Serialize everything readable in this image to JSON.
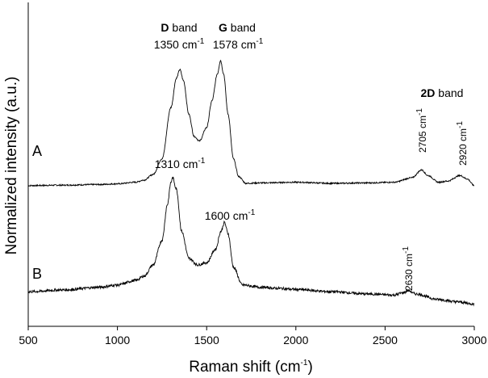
{
  "chart_data": {
    "type": "line",
    "xlabel": "Raman shift",
    "xlabel_unit_base": "cm",
    "xlabel_unit_exp": "-1",
    "ylabel": "Normalized intensity (a.u.)",
    "xlim": [
      500,
      3000
    ],
    "ylim": [
      0,
      1.45
    ],
    "xticks": [
      "500",
      "1000",
      "1500",
      "2000",
      "2500",
      "3000"
    ],
    "grid": false,
    "legend": "none",
    "line_color": "#000000",
    "series": [
      {
        "name": "A",
        "offset": 0.63,
        "points": [
          [
            500,
            0
          ],
          [
            700,
            0.002
          ],
          [
            900,
            0.005
          ],
          [
            1000,
            0.008
          ],
          [
            1100,
            0.015
          ],
          [
            1150,
            0.025
          ],
          [
            1200,
            0.05
          ],
          [
            1250,
            0.12
          ],
          [
            1300,
            0.35
          ],
          [
            1330,
            0.48
          ],
          [
            1350,
            0.52
          ],
          [
            1370,
            0.47
          ],
          [
            1400,
            0.32
          ],
          [
            1430,
            0.22
          ],
          [
            1460,
            0.2
          ],
          [
            1500,
            0.26
          ],
          [
            1530,
            0.38
          ],
          [
            1560,
            0.5
          ],
          [
            1578,
            0.56
          ],
          [
            1595,
            0.5
          ],
          [
            1620,
            0.32
          ],
          [
            1650,
            0.12
          ],
          [
            1680,
            0.04
          ],
          [
            1720,
            0.01
          ],
          [
            1800,
            0.012
          ],
          [
            2000,
            0.015
          ],
          [
            2200,
            0.01
          ],
          [
            2400,
            0.012
          ],
          [
            2550,
            0.015
          ],
          [
            2650,
            0.035
          ],
          [
            2705,
            0.07
          ],
          [
            2740,
            0.045
          ],
          [
            2800,
            0.015
          ],
          [
            2850,
            0.02
          ],
          [
            2920,
            0.045
          ],
          [
            2960,
            0.03
          ],
          [
            3000,
            0.0
          ]
        ]
      },
      {
        "name": "B",
        "offset": 0.085,
        "points": [
          [
            500,
            0.07
          ],
          [
            700,
            0.078
          ],
          [
            900,
            0.09
          ],
          [
            1000,
            0.1
          ],
          [
            1100,
            0.12
          ],
          [
            1150,
            0.14
          ],
          [
            1200,
            0.19
          ],
          [
            1250,
            0.3
          ],
          [
            1280,
            0.46
          ],
          [
            1300,
            0.56
          ],
          [
            1310,
            0.58
          ],
          [
            1330,
            0.53
          ],
          [
            1360,
            0.34
          ],
          [
            1400,
            0.22
          ],
          [
            1450,
            0.19
          ],
          [
            1500,
            0.2
          ],
          [
            1550,
            0.26
          ],
          [
            1580,
            0.34
          ],
          [
            1600,
            0.38
          ],
          [
            1620,
            0.33
          ],
          [
            1650,
            0.18
          ],
          [
            1700,
            0.1
          ],
          [
            1800,
            0.09
          ],
          [
            1900,
            0.085
          ],
          [
            2000,
            0.08
          ],
          [
            2200,
            0.07
          ],
          [
            2400,
            0.06
          ],
          [
            2550,
            0.055
          ],
          [
            2600,
            0.065
          ],
          [
            2630,
            0.075
          ],
          [
            2670,
            0.06
          ],
          [
            2800,
            0.035
          ],
          [
            2900,
            0.025
          ],
          [
            3000,
            0.015
          ]
        ]
      }
    ],
    "annotations": [
      {
        "x": 1350,
        "bold": "D",
        "text": " band"
      },
      {
        "x": 1578,
        "bold": "G",
        "text": " band"
      },
      {
        "x": 1350,
        "value": "1350 cm",
        "exp": "-1"
      },
      {
        "x": 1578,
        "value": "1578 cm",
        "exp": "-1"
      },
      {
        "x": 2700,
        "bold": "2D",
        "text": " band"
      },
      {
        "x": 2705,
        "value": "2705 cm",
        "exp": "-1",
        "rotated": true
      },
      {
        "x": 2920,
        "value": "2920 cm",
        "exp": "-1",
        "rotated": true
      },
      {
        "x": 1310,
        "value": "1310 cm",
        "exp": "-1"
      },
      {
        "x": 1600,
        "value": "1600 cm",
        "exp": "-1"
      },
      {
        "x": 2630,
        "value": "2630 cm",
        "exp": "-1",
        "rotated": true
      }
    ]
  }
}
